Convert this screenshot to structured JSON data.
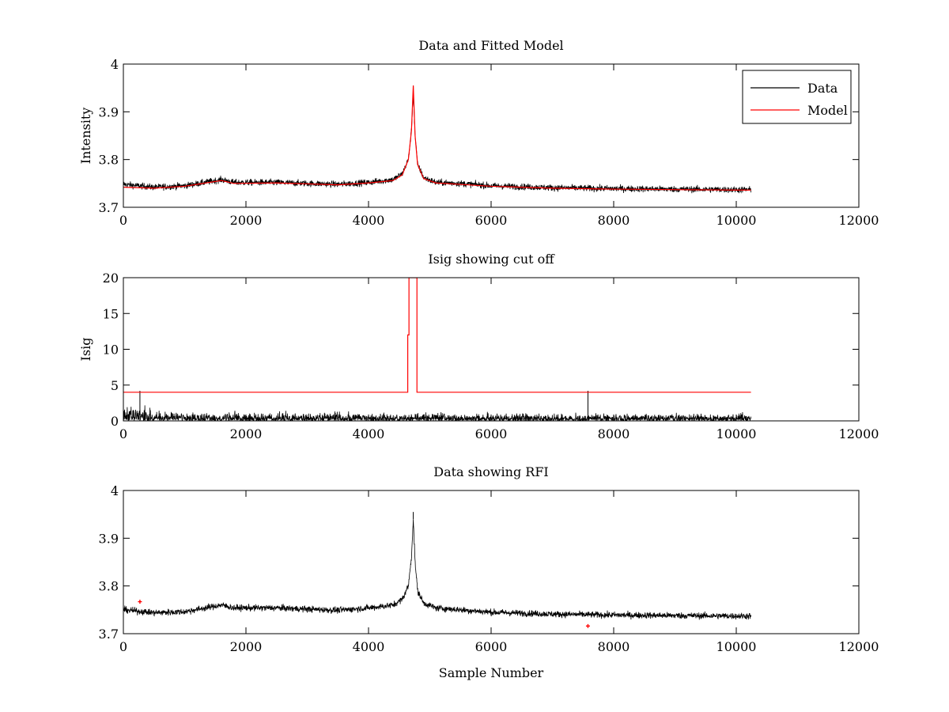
{
  "chart_data": [
    {
      "type": "line",
      "title": "Data and Fitted Model",
      "xlabel": "",
      "ylabel": "Intensity",
      "xlim": [
        0,
        12000
      ],
      "ylim": [
        3.7,
        4.0
      ],
      "xticks": [
        0,
        2000,
        4000,
        6000,
        8000,
        10000,
        12000
      ],
      "yticks": [
        3.7,
        3.8,
        3.9,
        4.0
      ],
      "xtick_labels": [
        "0",
        "2000",
        "4000",
        "6000",
        "8000",
        "10000",
        "12000"
      ],
      "ytick_labels": [
        "3.7",
        "3.8",
        "3.9",
        "4"
      ],
      "grid": false,
      "legend": {
        "position": "top-right",
        "entries": [
          "Data",
          "Model"
        ]
      },
      "series": [
        {
          "name": "Data",
          "color": "#000000",
          "render": "noisy",
          "noise_amplitude": 0.012,
          "baseline": {
            "x": [
              0,
              500,
              1000,
              1600,
              1800,
              2500,
              3500,
              4000,
              4400,
              4550,
              4650,
              4700,
              4730,
              4760,
              4800,
              4900,
              5100,
              5500,
              6000,
              7000,
              8000,
              9000,
              10000,
              10240
            ],
            "y": [
              3.748,
              3.742,
              3.745,
              3.758,
              3.752,
              3.752,
              3.748,
              3.752,
              3.758,
              3.77,
              3.8,
              3.86,
              3.94,
              3.85,
              3.79,
              3.762,
              3.752,
              3.75,
              3.745,
              3.741,
              3.739,
              3.738,
              3.737,
              3.737
            ]
          },
          "spikes": [
            {
              "x": 4730,
              "y": 3.955
            }
          ]
        },
        {
          "name": "Model",
          "color": "#ff0000",
          "render": "line",
          "x": [
            0,
            500,
            1000,
            1600,
            1800,
            2500,
            3500,
            4000,
            4400,
            4550,
            4650,
            4700,
            4730,
            4760,
            4800,
            4900,
            5100,
            5500,
            6000,
            7000,
            8000,
            9000,
            10000,
            10240
          ],
          "y": [
            3.742,
            3.74,
            3.744,
            3.756,
            3.75,
            3.751,
            3.747,
            3.751,
            3.756,
            3.768,
            3.8,
            3.86,
            3.955,
            3.85,
            3.79,
            3.76,
            3.751,
            3.748,
            3.744,
            3.74,
            3.738,
            3.737,
            3.736,
            3.736
          ]
        }
      ]
    },
    {
      "type": "line",
      "title": "Isig showing cut off",
      "xlabel": "",
      "ylabel": "Isig",
      "xlim": [
        0,
        12000
      ],
      "ylim": [
        0,
        20
      ],
      "xticks": [
        0,
        2000,
        4000,
        6000,
        8000,
        10000,
        12000
      ],
      "yticks": [
        0,
        5,
        10,
        15,
        20
      ],
      "xtick_labels": [
        "0",
        "2000",
        "4000",
        "6000",
        "8000",
        "10000",
        "12000"
      ],
      "ytick_labels": [
        "0",
        "5",
        "10",
        "15",
        "20"
      ],
      "grid": false,
      "series": [
        {
          "color": "#000000",
          "render": "noisy-abs",
          "baseline": {
            "x": [
              0,
              400,
              800,
              2000,
              4000,
              6000,
              8000,
              10000,
              10240
            ],
            "y": [
              1.9,
              1.6,
              1.1,
              0.9,
              1.0,
              0.9,
              0.8,
              0.9,
              0.9
            ]
          },
          "spikes": [
            {
              "x": 270,
              "y": 4.2
            },
            {
              "x": 7580,
              "y": 4.2
            }
          ]
        },
        {
          "color": "#ff0000",
          "render": "line",
          "x": [
            0,
            4640,
            4640,
            4660,
            4660,
            4790,
            4790,
            10240
          ],
          "y": [
            4,
            4,
            12,
            12,
            20,
            20,
            4,
            4
          ]
        }
      ]
    },
    {
      "type": "line",
      "title": "Data showing RFI",
      "xlabel": "Sample Number",
      "ylabel": "",
      "xlim": [
        0,
        12000
      ],
      "ylim": [
        3.7,
        4.0
      ],
      "xticks": [
        0,
        2000,
        4000,
        6000,
        8000,
        10000,
        12000
      ],
      "yticks": [
        3.7,
        3.8,
        3.9,
        4.0
      ],
      "xtick_labels": [
        "0",
        "2000",
        "4000",
        "6000",
        "8000",
        "10000",
        "12000"
      ],
      "ytick_labels": [
        "3.7",
        "3.8",
        "3.9",
        "4"
      ],
      "grid": false,
      "series": [
        {
          "color": "#000000",
          "render": "noisy",
          "noise_amplitude": 0.012,
          "baseline": {
            "x": [
              0,
              500,
              1000,
              1600,
              1800,
              2500,
              3500,
              4000,
              4400,
              4550,
              4650,
              4700,
              4730,
              4760,
              4800,
              4900,
              5100,
              5500,
              6000,
              7000,
              8000,
              9000,
              10000,
              10240
            ],
            "y": [
              3.75,
              3.744,
              3.746,
              3.76,
              3.754,
              3.754,
              3.749,
              3.754,
              3.76,
              3.772,
              3.8,
              3.86,
              3.94,
              3.85,
              3.79,
              3.764,
              3.754,
              3.75,
              3.745,
              3.741,
              3.739,
              3.738,
              3.737,
              3.737
            ]
          },
          "spikes": [
            {
              "x": 4730,
              "y": 3.955
            }
          ]
        },
        {
          "color": "#ff0000",
          "render": "markers",
          "x": [
            270,
            7580
          ],
          "y": [
            3.767,
            3.716
          ]
        }
      ]
    }
  ]
}
